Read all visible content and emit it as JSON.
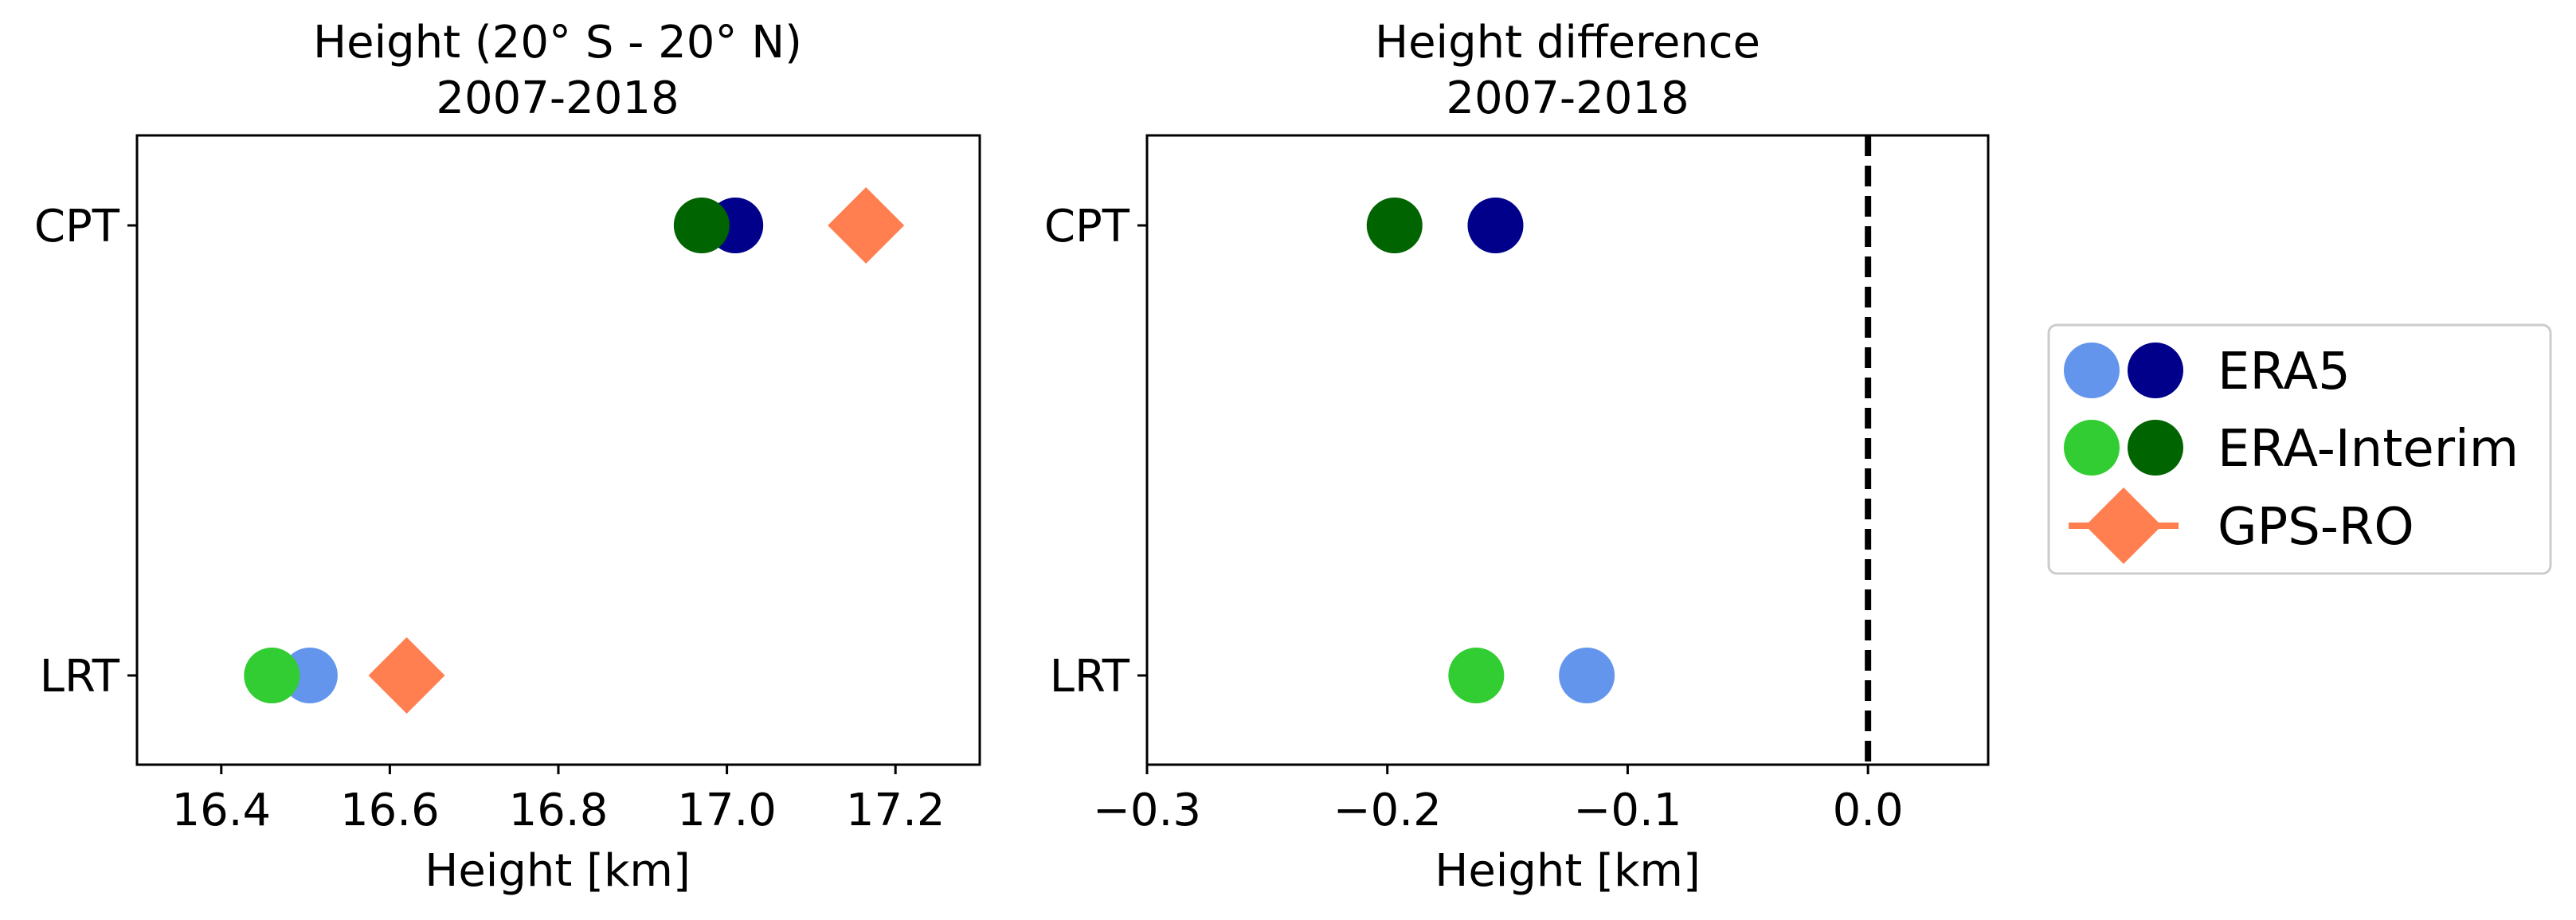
{
  "chart_data": [
    {
      "type": "scatter",
      "title_line1": "Height (20° S - 20° N)",
      "title_line2": "2007-2018",
      "xlabel": "Height [km]",
      "xlim": [
        16.3,
        17.3
      ],
      "xticks": [
        16.4,
        16.6,
        16.8,
        17.0,
        17.2
      ],
      "xtick_labels": [
        "16.4",
        "16.6",
        "16.8",
        "17.0",
        "17.2"
      ],
      "categories": [
        "CPT",
        "LRT"
      ],
      "series": [
        {
          "name": "ERA5 (LRT)",
          "marker": "circle",
          "color": "#6495ED",
          "category": "LRT",
          "x": 16.505
        },
        {
          "name": "ERA5 (CPT)",
          "marker": "circle",
          "color": "#00008B",
          "category": "CPT",
          "x": 17.01
        },
        {
          "name": "ERA-Interim (LRT)",
          "marker": "circle",
          "color": "#32CD32",
          "category": "LRT",
          "x": 16.46
        },
        {
          "name": "ERA-Interim (CPT)",
          "marker": "circle",
          "color": "#006400",
          "category": "CPT",
          "x": 16.97
        },
        {
          "name": "GPS-RO (LRT)",
          "marker": "diamond",
          "color": "#FF7F50",
          "category": "LRT",
          "x": 16.62
        },
        {
          "name": "GPS-RO (CPT)",
          "marker": "diamond",
          "color": "#FF7F50",
          "category": "CPT",
          "x": 17.165
        }
      ]
    },
    {
      "type": "scatter",
      "title_line1": "Height difference",
      "title_line2": "2007-2018",
      "xlabel": "Height [km]",
      "xlim": [
        -0.3,
        0.05
      ],
      "xticks": [
        -0.3,
        -0.2,
        -0.1,
        0.0
      ],
      "xtick_labels": [
        "−0.3",
        "−0.2",
        "−0.1",
        "0.0"
      ],
      "reference_line_x": 0.0,
      "categories": [
        "CPT",
        "LRT"
      ],
      "series": [
        {
          "name": "ERA5 (LRT)",
          "marker": "circle",
          "color": "#6495ED",
          "category": "LRT",
          "x": -0.117
        },
        {
          "name": "ERA5 (CPT)",
          "marker": "circle",
          "color": "#00008B",
          "category": "CPT",
          "x": -0.155
        },
        {
          "name": "ERA-Interim (LRT)",
          "marker": "circle",
          "color": "#32CD32",
          "category": "LRT",
          "x": -0.163
        },
        {
          "name": "ERA-Interim (CPT)",
          "marker": "circle",
          "color": "#006400",
          "category": "CPT",
          "x": -0.197
        }
      ]
    }
  ],
  "legend": {
    "placement": "right",
    "entries": [
      {
        "label": "ERA5",
        "colors": [
          "#6495ED",
          "#00008B"
        ],
        "marker": "circle"
      },
      {
        "label": "ERA-Interim",
        "colors": [
          "#32CD32",
          "#006400"
        ],
        "marker": "circle"
      },
      {
        "label": "GPS-RO",
        "colors": [
          "#FF7F50"
        ],
        "marker": "diamond"
      }
    ]
  }
}
